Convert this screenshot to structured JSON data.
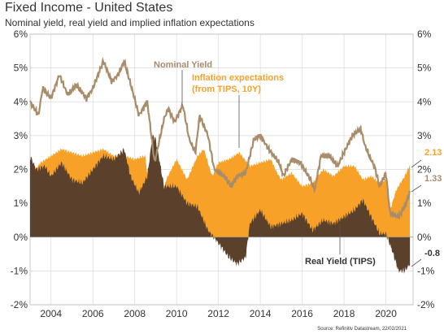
{
  "title": "Fixed Income - United States",
  "subtitle": "Nominal yield, real yield and implied inflation expectations",
  "source": "Source: Refinitiv Datastream, 22/02/2021",
  "colors": {
    "nominal": "#a98c6a",
    "inflation": "#f7a128",
    "real": "#5b412b",
    "grid": "#d9d9d9"
  },
  "chart_data": {
    "type": "area",
    "x_unit": "year",
    "xlim": [
      2003,
      2021.3
    ],
    "ylim": [
      -2,
      6
    ],
    "yticks": [
      "-2%",
      "-1%",
      "0%",
      "1%",
      "2%",
      "3%",
      "4%",
      "5%",
      "6%"
    ],
    "xticks": [
      "2004",
      "2006",
      "2008",
      "2010",
      "2012",
      "2014",
      "2016",
      "2018",
      "2020"
    ],
    "grid": true,
    "series": [
      {
        "name": "Nominal Yield",
        "type": "line",
        "points": [
          [
            2003.0,
            4.0
          ],
          [
            2003.4,
            3.6
          ],
          [
            2003.6,
            4.4
          ],
          [
            2004.0,
            4.1
          ],
          [
            2004.4,
            4.8
          ],
          [
            2004.8,
            4.2
          ],
          [
            2005.2,
            4.5
          ],
          [
            2005.7,
            4.1
          ],
          [
            2006.0,
            4.4
          ],
          [
            2006.5,
            5.2
          ],
          [
            2006.9,
            4.6
          ],
          [
            2007.2,
            4.8
          ],
          [
            2007.5,
            5.2
          ],
          [
            2007.9,
            4.3
          ],
          [
            2008.2,
            3.6
          ],
          [
            2008.6,
            4.0
          ],
          [
            2008.95,
            2.2
          ],
          [
            2009.4,
            3.5
          ],
          [
            2009.6,
            3.8
          ],
          [
            2009.9,
            3.4
          ],
          [
            2010.3,
            3.9
          ],
          [
            2010.6,
            2.9
          ],
          [
            2010.9,
            2.5
          ],
          [
            2011.1,
            3.6
          ],
          [
            2011.5,
            3.0
          ],
          [
            2011.8,
            2.0
          ],
          [
            2012.3,
            1.8
          ],
          [
            2012.6,
            1.5
          ],
          [
            2012.9,
            1.8
          ],
          [
            2013.3,
            1.9
          ],
          [
            2013.7,
            2.9
          ],
          [
            2014.0,
            3.0
          ],
          [
            2014.4,
            2.6
          ],
          [
            2014.9,
            2.2
          ],
          [
            2015.1,
            1.8
          ],
          [
            2015.5,
            2.3
          ],
          [
            2015.9,
            2.2
          ],
          [
            2016.4,
            1.7
          ],
          [
            2016.6,
            1.4
          ],
          [
            2016.9,
            2.4
          ],
          [
            2017.3,
            2.4
          ],
          [
            2017.7,
            2.1
          ],
          [
            2018.0,
            2.5
          ],
          [
            2018.4,
            3.0
          ],
          [
            2018.8,
            3.2
          ],
          [
            2019.0,
            2.7
          ],
          [
            2019.5,
            2.0
          ],
          [
            2019.7,
            1.5
          ],
          [
            2020.0,
            1.9
          ],
          [
            2020.2,
            0.7
          ],
          [
            2020.6,
            0.6
          ],
          [
            2020.9,
            0.9
          ],
          [
            2021.15,
            1.33
          ]
        ]
      },
      {
        "name": "Inflation expectations (from TIPS, 10Y)",
        "label_lines": [
          "Inflation expectations",
          "(from TIPS, 10Y)"
        ],
        "type": "area",
        "points": [
          [
            2003.0,
            1.8
          ],
          [
            2003.5,
            2.2
          ],
          [
            2004.0,
            2.4
          ],
          [
            2004.5,
            2.6
          ],
          [
            2005.0,
            2.5
          ],
          [
            2005.5,
            2.4
          ],
          [
            2006.0,
            2.5
          ],
          [
            2006.5,
            2.6
          ],
          [
            2007.0,
            2.4
          ],
          [
            2007.5,
            2.4
          ],
          [
            2008.0,
            2.3
          ],
          [
            2008.5,
            2.4
          ],
          [
            2008.95,
            0.0
          ],
          [
            2009.5,
            1.7
          ],
          [
            2010.0,
            2.3
          ],
          [
            2010.5,
            1.7
          ],
          [
            2011.0,
            2.4
          ],
          [
            2011.3,
            2.6
          ],
          [
            2011.7,
            1.8
          ],
          [
            2012.0,
            2.2
          ],
          [
            2012.5,
            2.3
          ],
          [
            2013.0,
            2.5
          ],
          [
            2013.5,
            2.1
          ],
          [
            2014.0,
            2.2
          ],
          [
            2014.5,
            2.3
          ],
          [
            2014.8,
            1.9
          ],
          [
            2015.0,
            1.7
          ],
          [
            2015.5,
            1.9
          ],
          [
            2016.0,
            1.5
          ],
          [
            2016.5,
            1.6
          ],
          [
            2017.0,
            2.0
          ],
          [
            2017.5,
            1.8
          ],
          [
            2018.0,
            2.1
          ],
          [
            2018.5,
            2.1
          ],
          [
            2018.9,
            1.7
          ],
          [
            2019.3,
            1.8
          ],
          [
            2019.7,
            1.6
          ],
          [
            2020.0,
            1.7
          ],
          [
            2020.2,
            0.8
          ],
          [
            2020.5,
            1.4
          ],
          [
            2020.9,
            1.8
          ],
          [
            2021.15,
            2.13
          ]
        ]
      },
      {
        "name": "Real Yield (TIPS)",
        "type": "area",
        "points": [
          [
            2003.0,
            2.4
          ],
          [
            2003.3,
            2.0
          ],
          [
            2003.7,
            2.1
          ],
          [
            2004.0,
            1.8
          ],
          [
            2004.5,
            2.2
          ],
          [
            2005.0,
            1.7
          ],
          [
            2005.5,
            1.6
          ],
          [
            2006.0,
            2.0
          ],
          [
            2006.5,
            2.4
          ],
          [
            2007.0,
            2.3
          ],
          [
            2007.5,
            2.6
          ],
          [
            2007.8,
            1.8
          ],
          [
            2008.2,
            1.3
          ],
          [
            2008.6,
            1.8
          ],
          [
            2008.85,
            3.0
          ],
          [
            2009.0,
            2.9
          ],
          [
            2009.4,
            1.5
          ],
          [
            2010.0,
            1.5
          ],
          [
            2010.5,
            1.0
          ],
          [
            2011.0,
            0.9
          ],
          [
            2011.5,
            0.2
          ],
          [
            2011.9,
            -0.1
          ],
          [
            2012.5,
            -0.6
          ],
          [
            2012.9,
            -0.8
          ],
          [
            2013.3,
            -0.6
          ],
          [
            2013.5,
            0.4
          ],
          [
            2014.0,
            0.8
          ],
          [
            2014.5,
            0.3
          ],
          [
            2015.0,
            0.4
          ],
          [
            2015.5,
            0.5
          ],
          [
            2016.0,
            0.7
          ],
          [
            2016.5,
            0.2
          ],
          [
            2017.0,
            0.5
          ],
          [
            2017.5,
            0.4
          ],
          [
            2018.0,
            0.6
          ],
          [
            2018.5,
            0.8
          ],
          [
            2018.9,
            1.1
          ],
          [
            2019.3,
            0.6
          ],
          [
            2019.7,
            0.1
          ],
          [
            2020.0,
            0.1
          ],
          [
            2020.3,
            -0.4
          ],
          [
            2020.6,
            -1.0
          ],
          [
            2020.9,
            -1.0
          ],
          [
            2021.15,
            -0.8
          ]
        ]
      }
    ],
    "end_labels": [
      "2.13",
      "1.33",
      "-0.8"
    ]
  }
}
